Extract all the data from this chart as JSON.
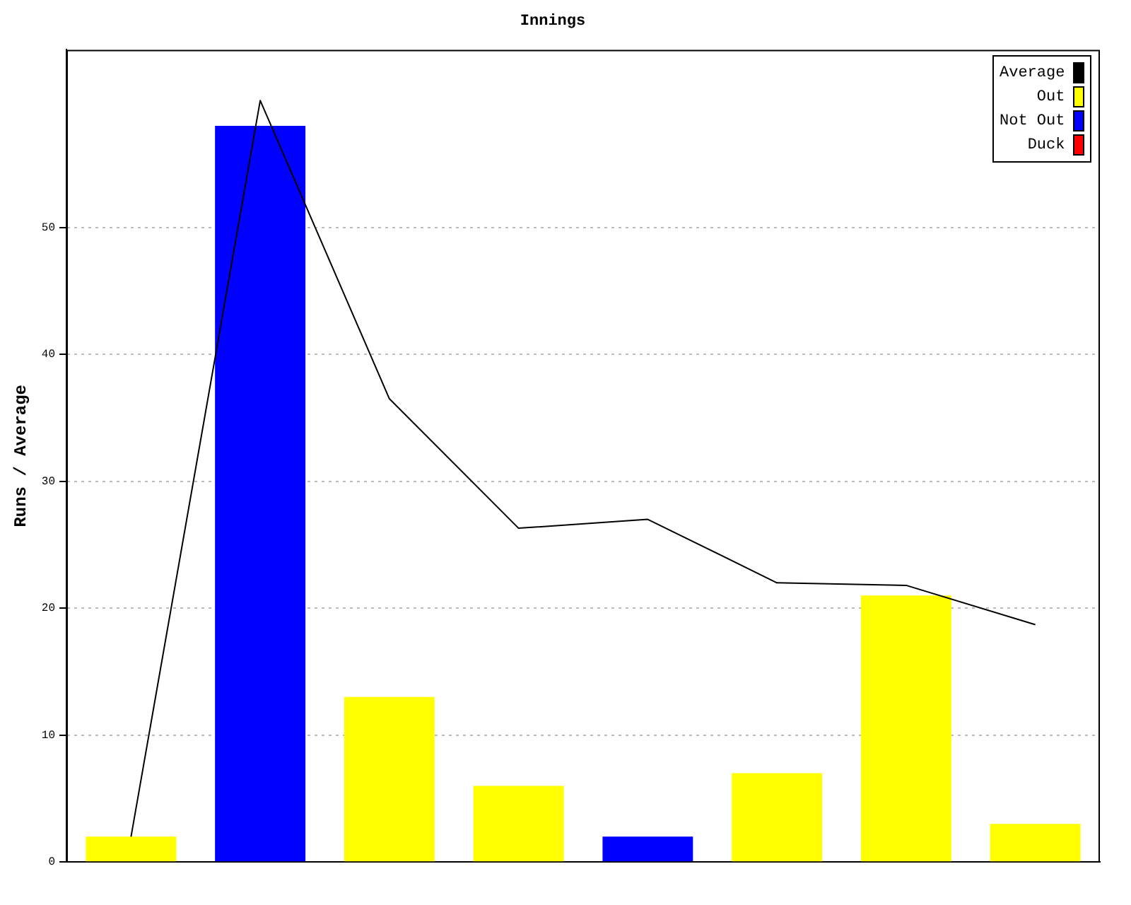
{
  "chart_data": {
    "type": "bar",
    "title": "Innings",
    "ylabel": "Runs / Average",
    "categories": [
      null,
      null,
      null,
      null,
      null,
      null,
      null,
      null
    ],
    "stacked": true,
    "ylim": [
      0,
      64
    ],
    "yticks": [
      0,
      10,
      20,
      30,
      40,
      50
    ],
    "grid": "y",
    "legend": "top right",
    "series": [
      {
        "name": "Average",
        "type": "line",
        "color": "#000000",
        "marker": "none",
        "values": [
          2,
          60,
          36.5,
          26.3,
          27,
          22,
          21.8,
          18.7
        ]
      },
      {
        "name": "Out",
        "color": "#ffff00",
        "values": [
          2,
          null,
          13,
          6,
          null,
          7,
          21,
          3
        ]
      },
      {
        "name": "Not Out",
        "color": "#0000ff",
        "values": [
          null,
          58,
          null,
          null,
          2,
          null,
          null,
          null
        ]
      },
      {
        "name": "Duck",
        "color": "#ff0000",
        "values": [
          null,
          null,
          null,
          null,
          null,
          null,
          null,
          null
        ]
      }
    ]
  }
}
